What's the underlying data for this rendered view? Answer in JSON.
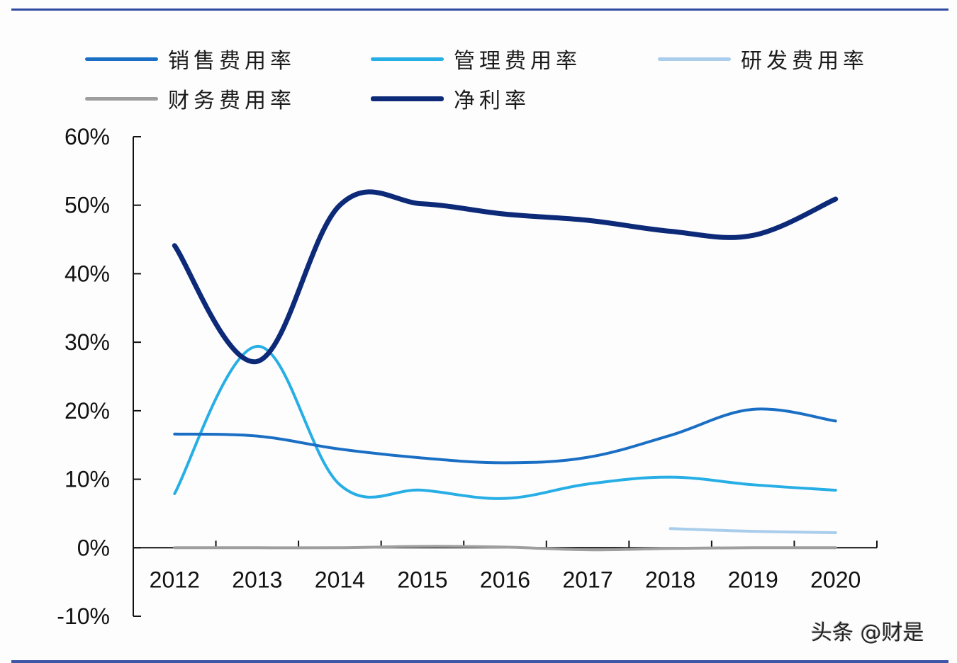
{
  "chart_data": {
    "type": "line",
    "title": "",
    "xlabel": "",
    "ylabel": "",
    "categories": [
      "2012",
      "2013",
      "2014",
      "2015",
      "2016",
      "2017",
      "2018",
      "2019",
      "2020"
    ],
    "ylim": [
      -10,
      60
    ],
    "yticks": [
      60,
      50,
      40,
      30,
      20,
      10,
      0,
      -10
    ],
    "ytick_labels": [
      "60%",
      "50%",
      "40%",
      "30%",
      "20%",
      "10%",
      "0%",
      "-10%"
    ],
    "grid": false,
    "legend_position": "top",
    "smooth": true,
    "series": [
      {
        "name": "销售费用率",
        "color": "#1a6fc4",
        "width": 4,
        "values": [
          16.6,
          16.3,
          14.4,
          13.1,
          12.4,
          13.2,
          16.4,
          20.2,
          18.5
        ]
      },
      {
        "name": "管理费用率",
        "color": "#27aee5",
        "width": 4,
        "values": [
          7.9,
          29.4,
          9.2,
          8.4,
          7.2,
          9.3,
          10.3,
          9.2,
          8.4
        ]
      },
      {
        "name": "研发费用率",
        "color": "#a9cdea",
        "width": 4,
        "values": [
          null,
          null,
          null,
          null,
          null,
          null,
          2.8,
          2.4,
          2.2
        ]
      },
      {
        "name": "财务费用率",
        "color": "#9e9e9e",
        "width": 4,
        "values": [
          0.0,
          0.0,
          0.0,
          0.2,
          0.1,
          -0.3,
          -0.1,
          0.0,
          0.0
        ]
      },
      {
        "name": "净利率",
        "color": "#0d2a78",
        "width": 7,
        "values": [
          44.1,
          27.2,
          50.0,
          50.2,
          48.7,
          47.8,
          46.2,
          45.6,
          50.9
        ]
      }
    ]
  },
  "legend": {
    "items": [
      {
        "label": "销售费用率",
        "color": "#1a6fc4"
      },
      {
        "label": "管理费用率",
        "color": "#27aee5"
      },
      {
        "label": "研发费用率",
        "color": "#a9cdea"
      },
      {
        "label": "财务费用率",
        "color": "#9e9e9e"
      },
      {
        "label": "净利率",
        "color": "#0d2a78"
      }
    ]
  },
  "watermark": "头条 @财是",
  "colors": {
    "frame": "#2f4aa0",
    "axis": "#111111"
  }
}
